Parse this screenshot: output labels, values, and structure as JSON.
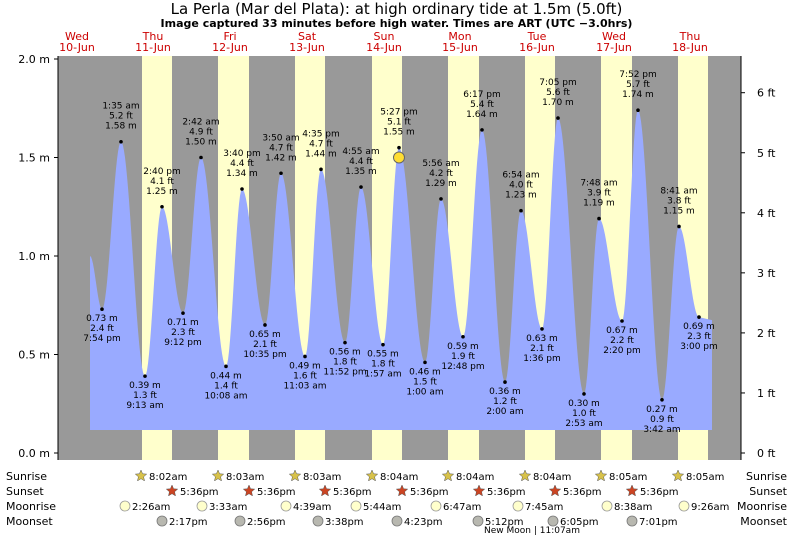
{
  "title": "La Perla (Mar del Plata): at high  ordinary tide at 1.5m (5.0ft)",
  "subtitle": "Image captured 33 minutes before high water. Times are ART (UTC −3.0hrs)",
  "colors": {
    "night": "#999999",
    "day": "#ffffcc",
    "water": "#99aaff",
    "dayname": "#cc0000",
    "now_marker": "#ffdd33"
  },
  "chart_data": {
    "type": "area",
    "ylim_m": [
      0,
      2.0
    ],
    "yticks_m": [
      "0.0 m",
      "0.5 m",
      "1.0 m",
      "1.5 m",
      "2.0 m"
    ],
    "yticks_ft": [
      "0 ft",
      "1 ft",
      "2 ft",
      "3 ft",
      "4 ft",
      "5 ft",
      "6 ft"
    ],
    "days": [
      {
        "dow": "Wed",
        "date": "10-Jun"
      },
      {
        "dow": "Thu",
        "date": "11-Jun"
      },
      {
        "dow": "Fri",
        "date": "12-Jun"
      },
      {
        "dow": "Sat",
        "date": "13-Jun"
      },
      {
        "dow": "Sun",
        "date": "14-Jun"
      },
      {
        "dow": "Mon",
        "date": "15-Jun"
      },
      {
        "dow": "Tue",
        "date": "16-Jun"
      },
      {
        "dow": "Wed",
        "date": "17-Jun"
      },
      {
        "dow": "Thu",
        "date": "18-Jun"
      }
    ],
    "tides": [
      {
        "type": "high",
        "time": "1:35 am",
        "m": "1.58 m",
        "ft": "5.2 ft",
        "value": 1.58
      },
      {
        "type": "low",
        "time": "7:54 pm",
        "m": "0.73 m",
        "ft": "2.4 ft",
        "value": 0.73
      },
      {
        "type": "low",
        "time": "9:13 am",
        "m": "0.39 m",
        "ft": "1.3 ft",
        "value": 0.39
      },
      {
        "type": "high",
        "time": "2:40 pm",
        "m": "1.25 m",
        "ft": "4.1 ft",
        "value": 1.25
      },
      {
        "type": "low",
        "time": "9:12 pm",
        "m": "0.71 m",
        "ft": "2.3 ft",
        "value": 0.71
      },
      {
        "type": "high",
        "time": "2:42 am",
        "m": "1.50 m",
        "ft": "4.9 ft",
        "value": 1.5
      },
      {
        "type": "low",
        "time": "10:08 am",
        "m": "0.44 m",
        "ft": "1.4 ft",
        "value": 0.44
      },
      {
        "type": "high",
        "time": "3:40 pm",
        "m": "1.34 m",
        "ft": "4.4 ft",
        "value": 1.34
      },
      {
        "type": "low",
        "time": "10:35 pm",
        "m": "0.65 m",
        "ft": "2.1 ft",
        "value": 0.65
      },
      {
        "type": "high",
        "time": "3:50 am",
        "m": "1.42 m",
        "ft": "4.7 ft",
        "value": 1.42
      },
      {
        "type": "low",
        "time": "11:03 am",
        "m": "0.49 m",
        "ft": "1.6 ft",
        "value": 0.49
      },
      {
        "type": "high",
        "time": "4:35 pm",
        "m": "1.44 m",
        "ft": "4.7 ft",
        "value": 1.44
      },
      {
        "type": "low",
        "time": "11:52 pm",
        "m": "0.56 m",
        "ft": "1.8 ft",
        "value": 0.56
      },
      {
        "type": "high",
        "time": "4:55 am",
        "m": "1.35 m",
        "ft": "4.4 ft",
        "value": 1.35
      },
      {
        "type": "low",
        "time": "1:57 am",
        "m": "0.55 m",
        "ft": "1.8 ft",
        "value": 0.55
      },
      {
        "type": "high",
        "time": "5:27 pm",
        "m": "1.55 m",
        "ft": "5.1 ft",
        "value": 1.55
      },
      {
        "type": "low",
        "time": "1:00 am",
        "m": "0.46 m",
        "ft": "1.5 ft",
        "value": 0.46
      },
      {
        "type": "high",
        "time": "5:56 am",
        "m": "1.29 m",
        "ft": "4.2 ft",
        "value": 1.29
      },
      {
        "type": "low",
        "time": "12:48 pm",
        "m": "0.59 m",
        "ft": "1.9 ft",
        "value": 0.59
      },
      {
        "type": "high",
        "time": "6:17 pm",
        "m": "1.64 m",
        "ft": "5.4 ft",
        "value": 1.64
      },
      {
        "type": "low",
        "time": "2:00 am",
        "m": "0.36 m",
        "ft": "1.2 ft",
        "value": 0.36
      },
      {
        "type": "high",
        "time": "6:54 am",
        "m": "1.23 m",
        "ft": "4.0 ft",
        "value": 1.23
      },
      {
        "type": "low",
        "time": "1:36 pm",
        "m": "0.63 m",
        "ft": "2.1 ft",
        "value": 0.63
      },
      {
        "type": "high",
        "time": "7:05 pm",
        "m": "1.70 m",
        "ft": "5.6 ft",
        "value": 1.7
      },
      {
        "type": "low",
        "time": "2:53 am",
        "m": "0.30 m",
        "ft": "1.0 ft",
        "value": 0.3
      },
      {
        "type": "high",
        "time": "7:48 am",
        "m": "1.19 m",
        "ft": "3.9 ft",
        "value": 1.19
      },
      {
        "type": "low",
        "time": "2:20 pm",
        "m": "0.67 m",
        "ft": "2.2 ft",
        "value": 0.67
      },
      {
        "type": "high",
        "time": "7:52 pm",
        "m": "1.74 m",
        "ft": "5.7 ft",
        "value": 1.74
      },
      {
        "type": "low",
        "time": "3:42 am",
        "m": "0.27 m",
        "ft": "0.9 ft",
        "value": 0.27
      },
      {
        "type": "high",
        "time": "8:41 am",
        "m": "1.15 m",
        "ft": "3.8 ft",
        "value": 1.15
      },
      {
        "type": "low",
        "time": "3:00 pm",
        "m": "0.69 m",
        "ft": "2.3 ft",
        "value": 0.69
      }
    ],
    "current_level_m": 1.5,
    "rows": {
      "labels": [
        "Sunrise",
        "Sunset",
        "Moonrise",
        "Moonset"
      ],
      "sunrise": [
        "8:02am",
        "8:03am",
        "8:03am",
        "8:04am",
        "8:04am",
        "8:04am",
        "8:05am",
        "8:05am"
      ],
      "sunset": [
        "5:36pm",
        "5:36pm",
        "5:36pm",
        "5:36pm",
        "5:36pm",
        "5:36pm",
        "5:36pm"
      ],
      "moonrise": [
        "2:26am",
        "3:33am",
        "4:39am",
        "5:44am",
        "6:47am",
        "7:45am",
        "8:38am",
        "9:26am"
      ],
      "moonset": [
        "2:17pm",
        "2:56pm",
        "3:38pm",
        "4:23pm",
        "5:12pm",
        "6:05pm",
        "7:01pm"
      ],
      "moon_phase": "New Moon | 11:07am"
    }
  }
}
